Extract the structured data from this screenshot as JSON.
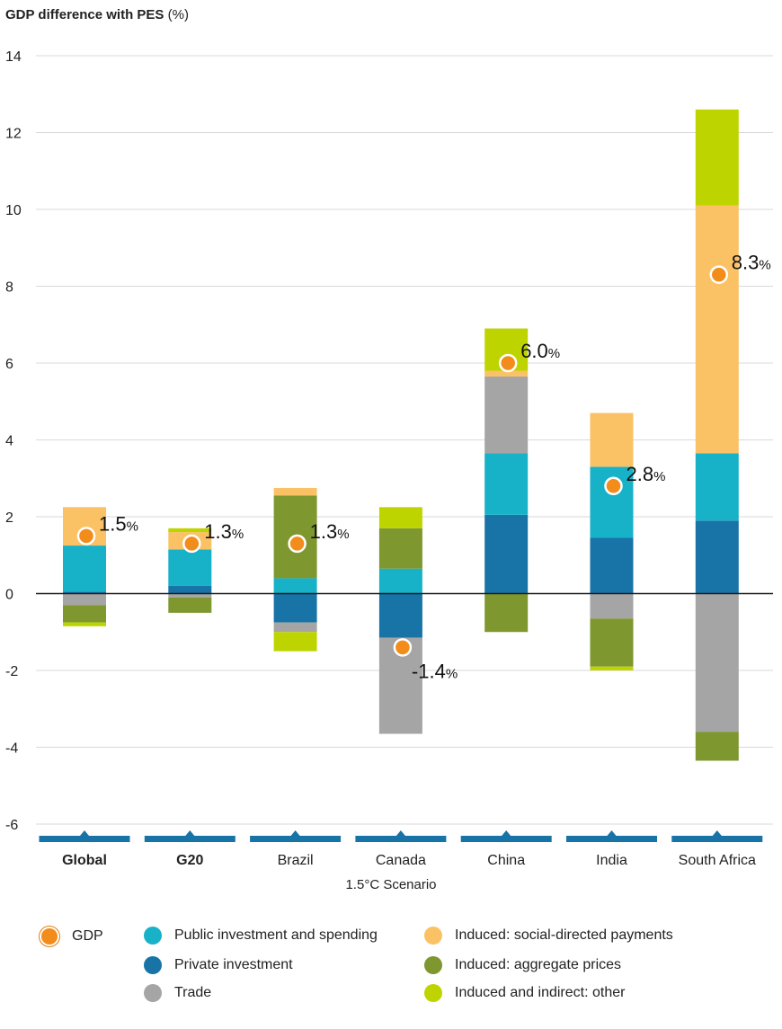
{
  "chart_data": {
    "type": "bar",
    "stacked": true,
    "ylabel": "GDP difference with PES",
    "ylabel_unit": "(%)",
    "xlabel": "1.5°C Scenario",
    "ylim": [
      -6,
      14
    ],
    "yticks": [
      14,
      12,
      10,
      8,
      6,
      4,
      2,
      0,
      -2,
      -4,
      -6
    ],
    "ytick_labels": [
      "14",
      "12",
      "10",
      "8",
      "6",
      "4",
      "2",
      "0",
      "-2",
      "-4",
      "-6"
    ],
    "grid": true,
    "categories": [
      "Global",
      "G20",
      "Brazil",
      "Canada",
      "China",
      "India",
      "South Africa"
    ],
    "bold_categories": [
      "Global",
      "G20"
    ],
    "colors": {
      "Public investment and spending": "#17b2c8",
      "Private investment": "#1873a7",
      "Trade": "#a5a5a5",
      "Induced: social-directed payments": "#fbc265",
      "Induced: aggregate prices": "#7e972f",
      "Induced and indirect: other": "#bed400",
      "GDP": "#f28c1b",
      "axis_band": "#1873a7"
    },
    "bars": [
      {
        "positive": [
          {
            "series": "Private investment",
            "value": 0.05
          },
          {
            "series": "Public investment and spending",
            "value": 1.2
          },
          {
            "series": "Induced: social-directed payments",
            "value": 1.0
          }
        ],
        "negative": [
          {
            "series": "Trade",
            "value": -0.3
          },
          {
            "series": "Induced: aggregate prices",
            "value": -0.45
          },
          {
            "series": "Induced and indirect: other",
            "value": -0.1
          }
        ]
      },
      {
        "positive": [
          {
            "series": "Private investment",
            "value": 0.2
          },
          {
            "series": "Public investment and spending",
            "value": 0.95
          },
          {
            "series": "Induced: social-directed payments",
            "value": 0.45
          },
          {
            "series": "Induced and indirect: other",
            "value": 0.1
          }
        ],
        "negative": [
          {
            "series": "Trade",
            "value": -0.1
          },
          {
            "series": "Induced: aggregate prices",
            "value": -0.4
          }
        ]
      },
      {
        "positive": [
          {
            "series": "Public investment and spending",
            "value": 0.4
          },
          {
            "series": "Induced: aggregate prices",
            "value": 2.15
          },
          {
            "series": "Induced: social-directed payments",
            "value": 0.2
          }
        ],
        "negative": [
          {
            "series": "Private investment",
            "value": -0.75
          },
          {
            "series": "Trade",
            "value": -0.25
          },
          {
            "series": "Induced and indirect: other",
            "value": -0.5
          }
        ]
      },
      {
        "positive": [
          {
            "series": "Public investment and spending",
            "value": 0.65
          },
          {
            "series": "Induced: aggregate prices",
            "value": 1.05
          },
          {
            "series": "Induced and indirect: other",
            "value": 0.55
          }
        ],
        "negative": [
          {
            "series": "Private investment",
            "value": -1.15
          },
          {
            "series": "Trade",
            "value": -2.5
          }
        ]
      },
      {
        "positive": [
          {
            "series": "Private investment",
            "value": 2.05
          },
          {
            "series": "Public investment and spending",
            "value": 1.6
          },
          {
            "series": "Trade",
            "value": 2.0
          },
          {
            "series": "Induced: social-directed payments",
            "value": 0.15
          },
          {
            "series": "Induced and indirect: other",
            "value": 1.1
          }
        ],
        "negative": [
          {
            "series": "Induced: aggregate prices",
            "value": -1.0
          }
        ]
      },
      {
        "positive": [
          {
            "series": "Private investment",
            "value": 1.45
          },
          {
            "series": "Public investment and spending",
            "value": 1.85
          },
          {
            "series": "Induced: social-directed payments",
            "value": 1.4
          }
        ],
        "negative": [
          {
            "series": "Trade",
            "value": -0.65
          },
          {
            "series": "Induced: aggregate prices",
            "value": -1.25
          },
          {
            "series": "Induced and indirect: other",
            "value": -0.1
          }
        ]
      },
      {
        "positive": [
          {
            "series": "Private investment",
            "value": 1.9
          },
          {
            "series": "Public investment and spending",
            "value": 1.75
          },
          {
            "series": "Induced: social-directed payments",
            "value": 6.45
          },
          {
            "series": "Induced and indirect: other",
            "value": 2.5
          }
        ],
        "negative": [
          {
            "series": "Trade",
            "value": -3.6
          },
          {
            "series": "Induced: aggregate prices",
            "value": -0.75
          }
        ]
      }
    ],
    "gdp": [
      1.5,
      1.3,
      1.3,
      -1.4,
      6.0,
      2.8,
      8.3
    ],
    "gdp_labels": [
      "1.5",
      "1.3",
      "1.3",
      "-1.4",
      "6.0",
      "2.8",
      "8.3"
    ],
    "gdp_label_unit": "%",
    "legend": {
      "placement": "bottom",
      "items": [
        {
          "label": "GDP",
          "key": "GDP"
        },
        {
          "label": "Public investment and spending",
          "key": "Public investment and spending"
        },
        {
          "label": "Induced: social-directed payments",
          "key": "Induced: social-directed payments"
        },
        {
          "label": "Private investment",
          "key": "Private investment"
        },
        {
          "label": "Induced: aggregate prices",
          "key": "Induced: aggregate prices"
        },
        {
          "label": "Trade",
          "key": "Trade"
        },
        {
          "label": "Induced and indirect: other",
          "key": "Induced and indirect: other"
        }
      ]
    }
  }
}
